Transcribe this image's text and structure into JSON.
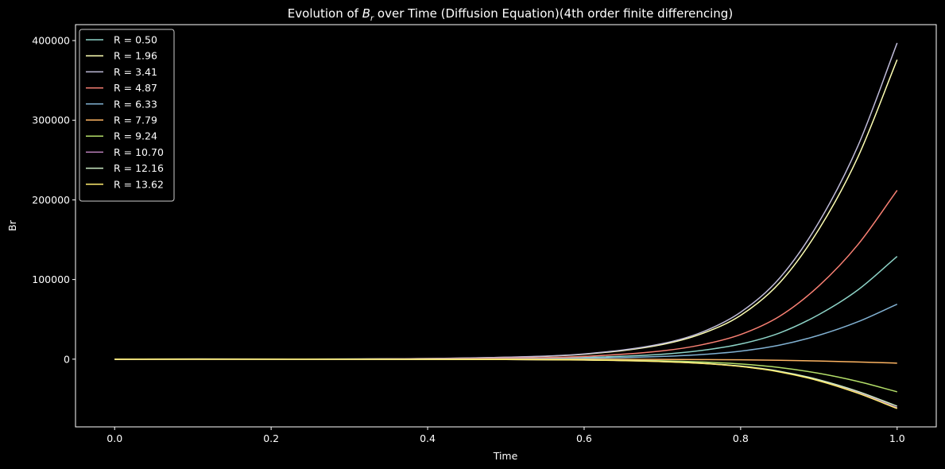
{
  "chart_data": {
    "type": "line",
    "title_prefix": "Evolution of ",
    "title_symbol": "B",
    "title_subscript": "r",
    "title_suffix": " over Time (Diffusion Equation)(4th order finite differencing)",
    "xlabel": "Time",
    "ylabel": "Br",
    "xlim": [
      -0.05,
      1.05
    ],
    "ylim": [
      -85000,
      420000
    ],
    "xticks": [
      0.0,
      0.2,
      0.4,
      0.6,
      0.8,
      1.0
    ],
    "xtick_labels": [
      "0.0",
      "0.2",
      "0.4",
      "0.6",
      "0.8",
      "1.0"
    ],
    "yticks": [
      0,
      100000,
      200000,
      300000,
      400000
    ],
    "ytick_labels": [
      "0",
      "100000",
      "200000",
      "300000",
      "400000"
    ],
    "grid": false,
    "legend_position": "top-left",
    "background": "#000000",
    "foreground": "#ffffff",
    "x": [
      0.0,
      0.5,
      0.6,
      0.7,
      0.75,
      0.8,
      0.85,
      0.9,
      0.95,
      1.0
    ],
    "series": [
      {
        "name": "R = 0.50",
        "color": "#8dd3c7",
        "values": [
          0,
          800,
          2100,
          6200,
          10900,
          19000,
          33000,
          56000,
          87000,
          129000
        ]
      },
      {
        "name": "R = 1.96",
        "color": "#feffb3",
        "values": [
          0,
          2300,
          6200,
          18400,
          31800,
          55000,
          96000,
          163000,
          254000,
          376000
        ]
      },
      {
        "name": "R = 3.41",
        "color": "#bfbbd9",
        "values": [
          0,
          2500,
          6600,
          19500,
          33700,
          59000,
          102000,
          172000,
          268000,
          397000
        ]
      },
      {
        "name": "R = 4.87",
        "color": "#fa8174",
        "values": [
          0,
          1300,
          3500,
          10400,
          18000,
          31000,
          54000,
          92000,
          144000,
          212000
        ]
      },
      {
        "name": "R = 6.33",
        "color": "#81b1d2",
        "values": [
          0,
          400,
          1100,
          3400,
          5800,
          10100,
          17700,
          30000,
          47000,
          69000
        ]
      },
      {
        "name": "R = 7.79",
        "color": "#fdb462",
        "values": [
          0,
          -40,
          -100,
          -300,
          -500,
          -800,
          -1400,
          -2300,
          -3500,
          -5000
        ]
      },
      {
        "name": "R = 9.24",
        "color": "#b3de69",
        "values": [
          0,
          -250,
          -680,
          -2000,
          -3500,
          -6000,
          -10500,
          -17800,
          -28000,
          -41000
        ]
      },
      {
        "name": "R = 10.70",
        "color": "#bc82bd",
        "values": [
          0,
          -370,
          -1000,
          -3000,
          -5200,
          -9000,
          -15700,
          -26500,
          -41500,
          -61000
        ]
      },
      {
        "name": "R = 12.16",
        "color": "#ccebc4",
        "values": [
          0,
          -360,
          -960,
          -2900,
          -5000,
          -8700,
          -15200,
          -25800,
          -40500,
          -59000
        ]
      },
      {
        "name": "R = 13.62",
        "color": "#ffed6f",
        "values": [
          0,
          -380,
          -1030,
          -3100,
          -5300,
          -9200,
          -16100,
          -27200,
          -42800,
          -62000
        ]
      }
    ]
  }
}
